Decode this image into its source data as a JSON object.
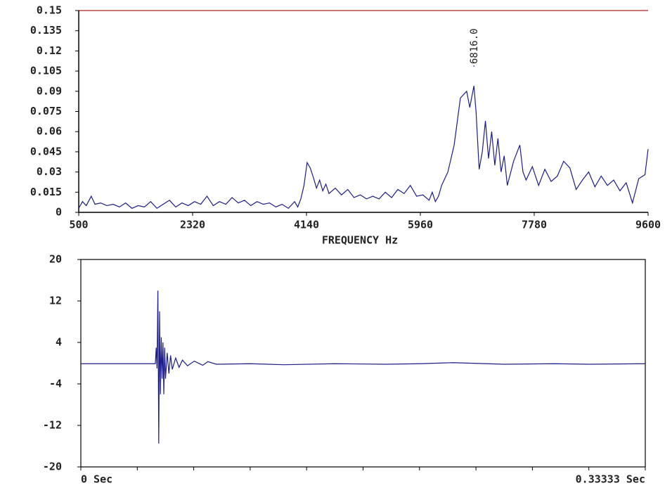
{
  "chart_data": [
    {
      "type": "line",
      "color": "#1c1c8a",
      "xlabel": "FREQUENCY Hz",
      "xlim": [
        500,
        9600
      ],
      "ylim": [
        0,
        0.15
      ],
      "xticks": [
        500,
        2320,
        4140,
        5960,
        7780,
        9600
      ],
      "yticks": [
        0.15,
        0.135,
        0.12,
        0.105,
        0.09,
        0.075,
        0.06,
        0.045,
        0.03,
        0.015,
        0
      ],
      "annotations": [
        {
          "text": "6816.0",
          "x": 6816
        }
      ],
      "x": [
        500,
        560,
        620,
        700,
        760,
        850,
        950,
        1050,
        1150,
        1250,
        1350,
        1450,
        1550,
        1650,
        1750,
        1850,
        1950,
        2050,
        2150,
        2250,
        2350,
        2450,
        2550,
        2650,
        2750,
        2850,
        2950,
        3050,
        3150,
        3250,
        3350,
        3450,
        3550,
        3650,
        3750,
        3850,
        3950,
        4000,
        4050,
        4100,
        4150,
        4200,
        4250,
        4300,
        4350,
        4400,
        4450,
        4500,
        4600,
        4700,
        4800,
        4900,
        5000,
        5100,
        5200,
        5300,
        5400,
        5500,
        5600,
        5700,
        5800,
        5900,
        6000,
        6100,
        6150,
        6200,
        6250,
        6300,
        6400,
        6500,
        6600,
        6700,
        6750,
        6816,
        6850,
        6900,
        6950,
        7000,
        7050,
        7100,
        7150,
        7200,
        7250,
        7300,
        7350,
        7450,
        7550,
        7600,
        7650,
        7750,
        7850,
        7950,
        8050,
        8150,
        8250,
        8350,
        8450,
        8550,
        8650,
        8750,
        8850,
        8950,
        9050,
        9150,
        9250,
        9350,
        9450,
        9550,
        9600
      ],
      "values": [
        0.003,
        0.008,
        0.005,
        0.012,
        0.006,
        0.007,
        0.005,
        0.006,
        0.004,
        0.007,
        0.003,
        0.005,
        0.004,
        0.008,
        0.003,
        0.006,
        0.009,
        0.004,
        0.007,
        0.005,
        0.008,
        0.006,
        0.012,
        0.005,
        0.008,
        0.006,
        0.011,
        0.007,
        0.009,
        0.005,
        0.008,
        0.006,
        0.007,
        0.004,
        0.006,
        0.003,
        0.008,
        0.004,
        0.01,
        0.02,
        0.037,
        0.033,
        0.026,
        0.018,
        0.024,
        0.016,
        0.021,
        0.014,
        0.018,
        0.013,
        0.017,
        0.011,
        0.013,
        0.01,
        0.012,
        0.01,
        0.015,
        0.011,
        0.017,
        0.014,
        0.02,
        0.012,
        0.013,
        0.009,
        0.015,
        0.008,
        0.012,
        0.02,
        0.03,
        0.05,
        0.085,
        0.09,
        0.078,
        0.094,
        0.075,
        0.032,
        0.045,
        0.068,
        0.04,
        0.06,
        0.035,
        0.055,
        0.03,
        0.042,
        0.02,
        0.038,
        0.05,
        0.03,
        0.024,
        0.034,
        0.02,
        0.032,
        0.023,
        0.027,
        0.038,
        0.033,
        0.017,
        0.024,
        0.03,
        0.019,
        0.027,
        0.02,
        0.024,
        0.016,
        0.022,
        0.007,
        0.025,
        0.028,
        0.047
      ]
    },
    {
      "type": "line",
      "color": "#1c1c8a",
      "xlim": [
        0,
        0.33333
      ],
      "ylim": [
        -20,
        20
      ],
      "xticks": [
        {
          "value": 0,
          "label": "0 Sec"
        },
        {
          "value": 0.33333,
          "label": "0.33333 Sec"
        }
      ],
      "yticks": [
        20,
        12,
        4,
        -4,
        -12,
        -20
      ],
      "x": [
        0,
        0.02,
        0.044,
        0.0445,
        0.045,
        0.0455,
        0.046,
        0.0465,
        0.047,
        0.0475,
        0.048,
        0.0485,
        0.049,
        0.0495,
        0.05,
        0.051,
        0.052,
        0.053,
        0.054,
        0.056,
        0.058,
        0.06,
        0.063,
        0.067,
        0.072,
        0.075,
        0.08,
        0.1,
        0.12,
        0.15,
        0.18,
        0.2,
        0.22,
        0.25,
        0.28,
        0.3,
        0.33333
      ],
      "values": [
        -0.1,
        -0.1,
        -0.1,
        3,
        -1,
        14,
        -15.5,
        10,
        -6,
        5,
        -3,
        4,
        -6,
        3,
        -3,
        2,
        -2,
        1.5,
        -1.2,
        1,
        -0.8,
        0.6,
        -0.5,
        0.4,
        -0.4,
        0.3,
        -0.2,
        -0.1,
        -0.3,
        -0.1,
        -0.2,
        -0.1,
        0.1,
        -0.2,
        -0.1,
        -0.2,
        -0.1
      ]
    }
  ]
}
